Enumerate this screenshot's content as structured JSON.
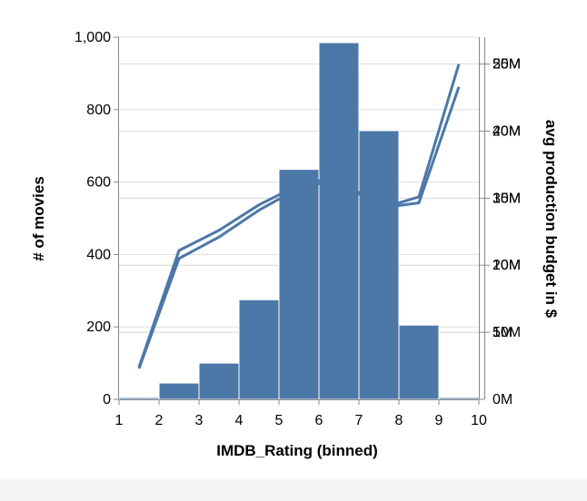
{
  "chart_data": {
    "type": "bar",
    "x_axis": {
      "label": "IMDB_Rating (binned)",
      "ticks": [
        "1",
        "2",
        "3",
        "4",
        "5",
        "6",
        "7",
        "8",
        "9",
        "10"
      ],
      "range": [
        1,
        10
      ]
    },
    "y_axis_left": {
      "label": "# of movies",
      "ticks": [
        {
          "value": 0,
          "text": "0"
        },
        {
          "value": 200,
          "text": "200"
        },
        {
          "value": 400,
          "text": "400"
        },
        {
          "value": 600,
          "text": "600"
        },
        {
          "value": 800,
          "text": "800"
        },
        {
          "value": 1000,
          "text": "1,000"
        }
      ],
      "range": [
        0,
        1000
      ]
    },
    "y_axis_right_a": {
      "ticks": [
        {
          "value": 0,
          "text": "0M"
        },
        {
          "value": 5,
          "text": "5M"
        },
        {
          "value": 10,
          "text": "10M"
        },
        {
          "value": 15,
          "text": "15M"
        },
        {
          "value": 20,
          "text": "20M"
        },
        {
          "value": 25,
          "text": "25M"
        }
      ],
      "range": [
        0,
        27
      ]
    },
    "y_axis_right_b": {
      "label": "avg production budget in $",
      "ticks": [
        {
          "value": 10,
          "text": "10M"
        },
        {
          "value": 20,
          "text": "20M"
        },
        {
          "value": 30,
          "text": "30M"
        },
        {
          "value": 40,
          "text": "40M"
        },
        {
          "value": 50,
          "text": "50M"
        }
      ],
      "range": [
        0,
        54
      ]
    },
    "bars": [
      {
        "x0": 1,
        "x1": 2,
        "value": 5
      },
      {
        "x0": 2,
        "x1": 3,
        "value": 45
      },
      {
        "x0": 3,
        "x1": 4,
        "value": 100
      },
      {
        "x0": 4,
        "x1": 5,
        "value": 275
      },
      {
        "x0": 5,
        "x1": 6,
        "value": 635
      },
      {
        "x0": 6,
        "x1": 7,
        "value": 985
      },
      {
        "x0": 7,
        "x1": 8,
        "value": 742
      },
      {
        "x0": 8,
        "x1": 9,
        "value": 205
      },
      {
        "x0": 9,
        "x1": 10,
        "value": 5
      }
    ],
    "series": [
      {
        "axis": "a",
        "x": [
          1.5,
          2.5,
          3.5,
          4.5,
          5.5,
          6.5,
          7.5,
          8.5,
          9.5
        ],
        "values": [
          2.4,
          11.1,
          12.6,
          14.5,
          16.0,
          16.6,
          14.2,
          15.1,
          25.0
        ]
      },
      {
        "axis": "b",
        "x": [
          1.5,
          2.5,
          3.5,
          4.5,
          5.5,
          6.5,
          7.5,
          8.5,
          9.5
        ],
        "values": [
          4.6,
          21.0,
          24.2,
          28.2,
          31.5,
          32.8,
          28.5,
          29.3,
          46.6
        ]
      }
    ],
    "colors": {
      "bar": "#4c78a8",
      "line": "#4c78a8"
    },
    "grid": true
  }
}
